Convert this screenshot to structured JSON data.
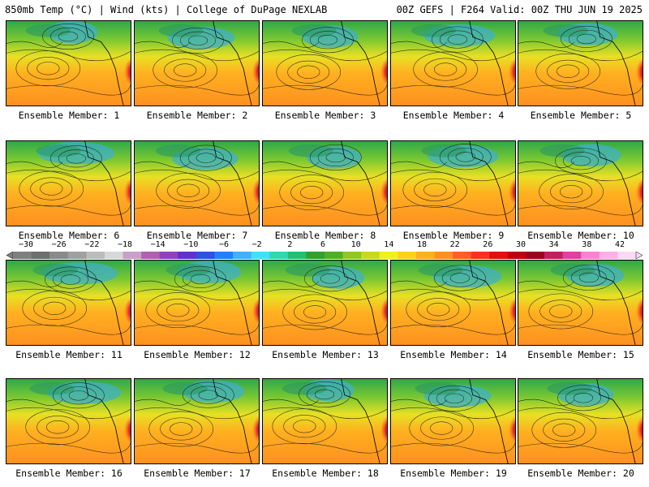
{
  "header": {
    "left": "850mb Temp (°C) | Wind (kts) | College of DuPage NEXLAB",
    "right": "00Z GEFS | F264 Valid: 00Z THU JUN 19 2025"
  },
  "members": [
    "Ensemble Member: 1",
    "Ensemble Member: 2",
    "Ensemble Member: 3",
    "Ensemble Member: 4",
    "Ensemble Member: 5",
    "Ensemble Member: 6",
    "Ensemble Member: 7",
    "Ensemble Member: 8",
    "Ensemble Member: 9",
    "Ensemble Member: 10",
    "Ensemble Member: 11",
    "Ensemble Member: 12",
    "Ensemble Member: 13",
    "Ensemble Member: 14",
    "Ensemble Member: 15",
    "Ensemble Member: 16",
    "Ensemble Member: 17",
    "Ensemble Member: 18",
    "Ensemble Member: 19",
    "Ensemble Member: 20"
  ],
  "colorbar": {
    "ticks": [
      "−30",
      "−26",
      "−22",
      "−18",
      "−14",
      "−10",
      "−6",
      "−2",
      "2",
      "6",
      "10",
      "14",
      "18",
      "22",
      "26",
      "30",
      "34",
      "38",
      "42"
    ],
    "colors": [
      "#7f7f7f",
      "#6e6e6e",
      "#8a8a8a",
      "#a0a0a0",
      "#bcbcbc",
      "#d8d8d8",
      "#c8a0c8",
      "#b060b0",
      "#9040c0",
      "#6030d0",
      "#3050e0",
      "#2080ff",
      "#40b0ff",
      "#40e0ff",
      "#30d8b0",
      "#20c070",
      "#30a030",
      "#50b020",
      "#90c820",
      "#c8d820",
      "#f0f020",
      "#ffd020",
      "#ffb020",
      "#ff9020",
      "#ff6020",
      "#ff3020",
      "#e01010",
      "#c00010",
      "#a00020",
      "#c02060",
      "#e040a0",
      "#ff80d0",
      "#ffb0e8",
      "#ffd8f4"
    ]
  }
}
